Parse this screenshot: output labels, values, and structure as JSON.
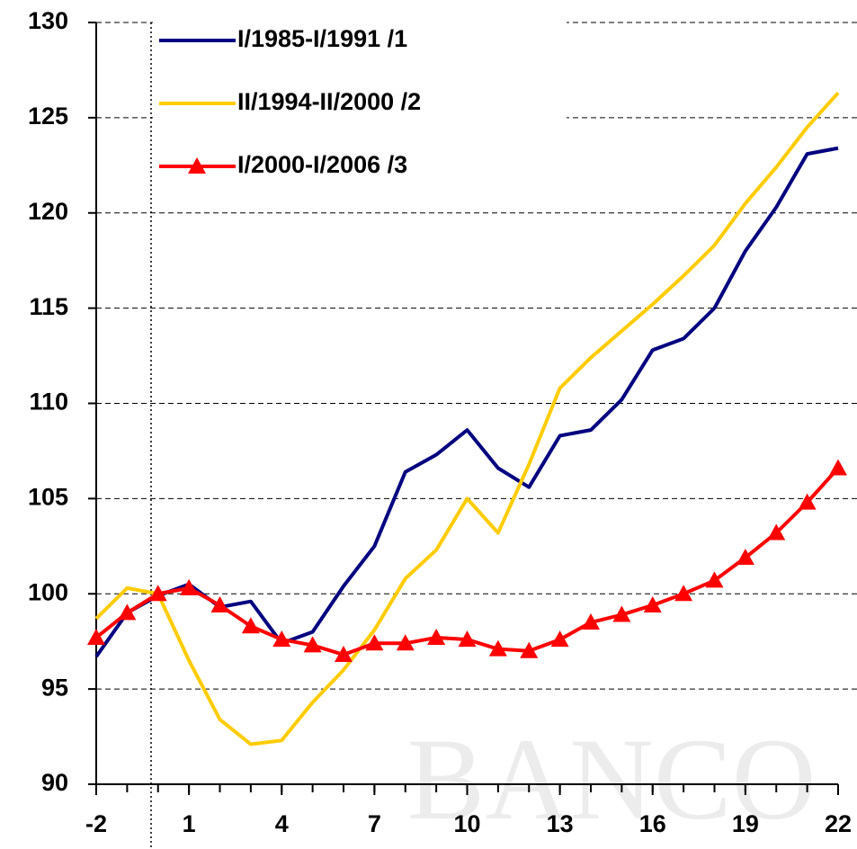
{
  "chart_data": {
    "type": "line",
    "watermark": "BANCO",
    "x": [
      -2,
      -1,
      0,
      1,
      2,
      3,
      4,
      5,
      6,
      7,
      8,
      9,
      10,
      11,
      12,
      13,
      14,
      15,
      16,
      17,
      18,
      19,
      20,
      21,
      22
    ],
    "series": [
      {
        "name": "I/1985-I/1991 /1",
        "color": "#000080",
        "marker": "none",
        "values": [
          96.7,
          99.0,
          99.9,
          100.5,
          99.3,
          99.6,
          97.4,
          98.0,
          100.4,
          102.5,
          106.4,
          107.3,
          108.6,
          106.6,
          105.6,
          108.3,
          108.6,
          110.2,
          112.8,
          113.4,
          115.0,
          118.0,
          120.3,
          123.1,
          123.4
        ]
      },
      {
        "name": "II/1994-II/2000 /2",
        "color": "#ffcc00",
        "marker": "none",
        "values": [
          98.7,
          100.3,
          100.0,
          96.5,
          93.4,
          92.1,
          92.3,
          94.3,
          96.0,
          98.1,
          100.8,
          102.3,
          105.0,
          103.2,
          106.8,
          110.8,
          112.4,
          113.8,
          115.2,
          116.7,
          118.3,
          120.5,
          122.4,
          124.5,
          126.3
        ]
      },
      {
        "name": "I/2000-I/2006 /3",
        "color": "#ff0000",
        "marker": "triangle",
        "values": [
          97.7,
          99.0,
          100.0,
          100.3,
          99.4,
          98.3,
          97.6,
          97.3,
          96.8,
          97.4,
          97.4,
          97.7,
          97.6,
          97.1,
          97.0,
          97.6,
          98.5,
          98.9,
          99.4,
          100.0,
          100.7,
          101.9,
          103.2,
          104.8,
          106.6
        ]
      }
    ],
    "xlim": [
      -2,
      22
    ],
    "xticks": [
      -2,
      1,
      4,
      7,
      10,
      13,
      16,
      19,
      22
    ],
    "ylim": [
      90,
      130
    ],
    "yticks": [
      90,
      95,
      100,
      105,
      110,
      115,
      120,
      125,
      130
    ],
    "grid": true,
    "legend": "top-left"
  }
}
